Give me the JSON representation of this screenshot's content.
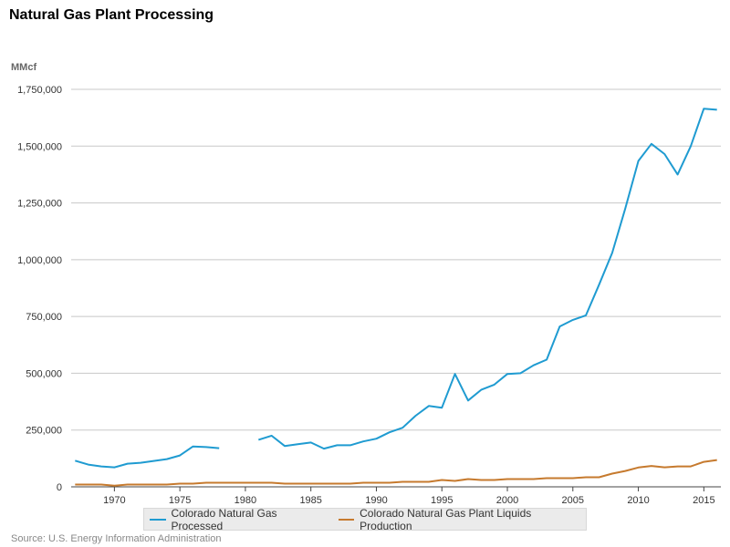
{
  "colors": {
    "gas": "#1f9bd1",
    "liquids": "#c67a2e",
    "grid": "#c8c8c8"
  },
  "source": "Source: U.S. Energy Information Administration",
  "chart_data": {
    "type": "line",
    "title": "Natural Gas Plant Processing",
    "ylabel": "MMcf",
    "xlabel": "",
    "xlim": [
      1966.7,
      2016.3
    ],
    "ylim": [
      0,
      1750000
    ],
    "yticks": [
      0,
      250000,
      500000,
      750000,
      1000000,
      1250000,
      1500000,
      1750000
    ],
    "ytick_labels": [
      "0",
      "250,000",
      "500,000",
      "750,000",
      "1,000,000",
      "1,250,000",
      "1,500,000",
      "1,750,000"
    ],
    "xticks": [
      1970,
      1975,
      1980,
      1985,
      1990,
      1995,
      2000,
      2005,
      2010,
      2015
    ],
    "xtick_labels": [
      "1970",
      "1975",
      "1980",
      "1985",
      "1990",
      "1995",
      "2000",
      "2005",
      "2010",
      "2015"
    ],
    "grid": true,
    "legend_position": "bottom",
    "x": [
      1967,
      1968,
      1969,
      1970,
      1971,
      1972,
      1973,
      1974,
      1975,
      1976,
      1977,
      1978,
      1979,
      1980,
      1981,
      1982,
      1983,
      1984,
      1985,
      1986,
      1987,
      1988,
      1989,
      1990,
      1991,
      1992,
      1993,
      1994,
      1995,
      1996,
      1997,
      1998,
      1999,
      2000,
      2001,
      2002,
      2003,
      2004,
      2005,
      2006,
      2007,
      2008,
      2009,
      2010,
      2011,
      2012,
      2013,
      2014,
      2015,
      2016
    ],
    "series": [
      {
        "name": "Colorado Natural Gas Processed",
        "values": [
          115000,
          98000,
          90000,
          86000,
          102000,
          106000,
          114000,
          122000,
          138000,
          178000,
          175000,
          170000,
          null,
          null,
          207000,
          225000,
          180000,
          188000,
          195000,
          168000,
          183000,
          183000,
          200000,
          212000,
          240000,
          260000,
          313000,
          356000,
          348000,
          497000,
          380000,
          427000,
          450000,
          497000,
          500000,
          535000,
          560000,
          706000,
          735000,
          755000,
          890000,
          1030000,
          1225000,
          1435000,
          1510000,
          1465000,
          1375000,
          1500000,
          1665000,
          1660000
        ]
      },
      {
        "name": "Colorado Natural Gas Plant Liquids Production",
        "values": [
          10000,
          10000,
          10000,
          5000,
          10000,
          10000,
          10000,
          10000,
          14000,
          14000,
          18000,
          18000,
          18000,
          18000,
          18000,
          18000,
          14000,
          14000,
          14000,
          14000,
          14000,
          14000,
          18000,
          18000,
          18000,
          22000,
          22000,
          22000,
          30000,
          26000,
          34000,
          30000,
          30000,
          34000,
          34000,
          34000,
          38000,
          38000,
          38000,
          42000,
          42000,
          58000,
          70000,
          85000,
          92000,
          86000,
          90000,
          90000,
          110000,
          118000
        ]
      }
    ]
  }
}
